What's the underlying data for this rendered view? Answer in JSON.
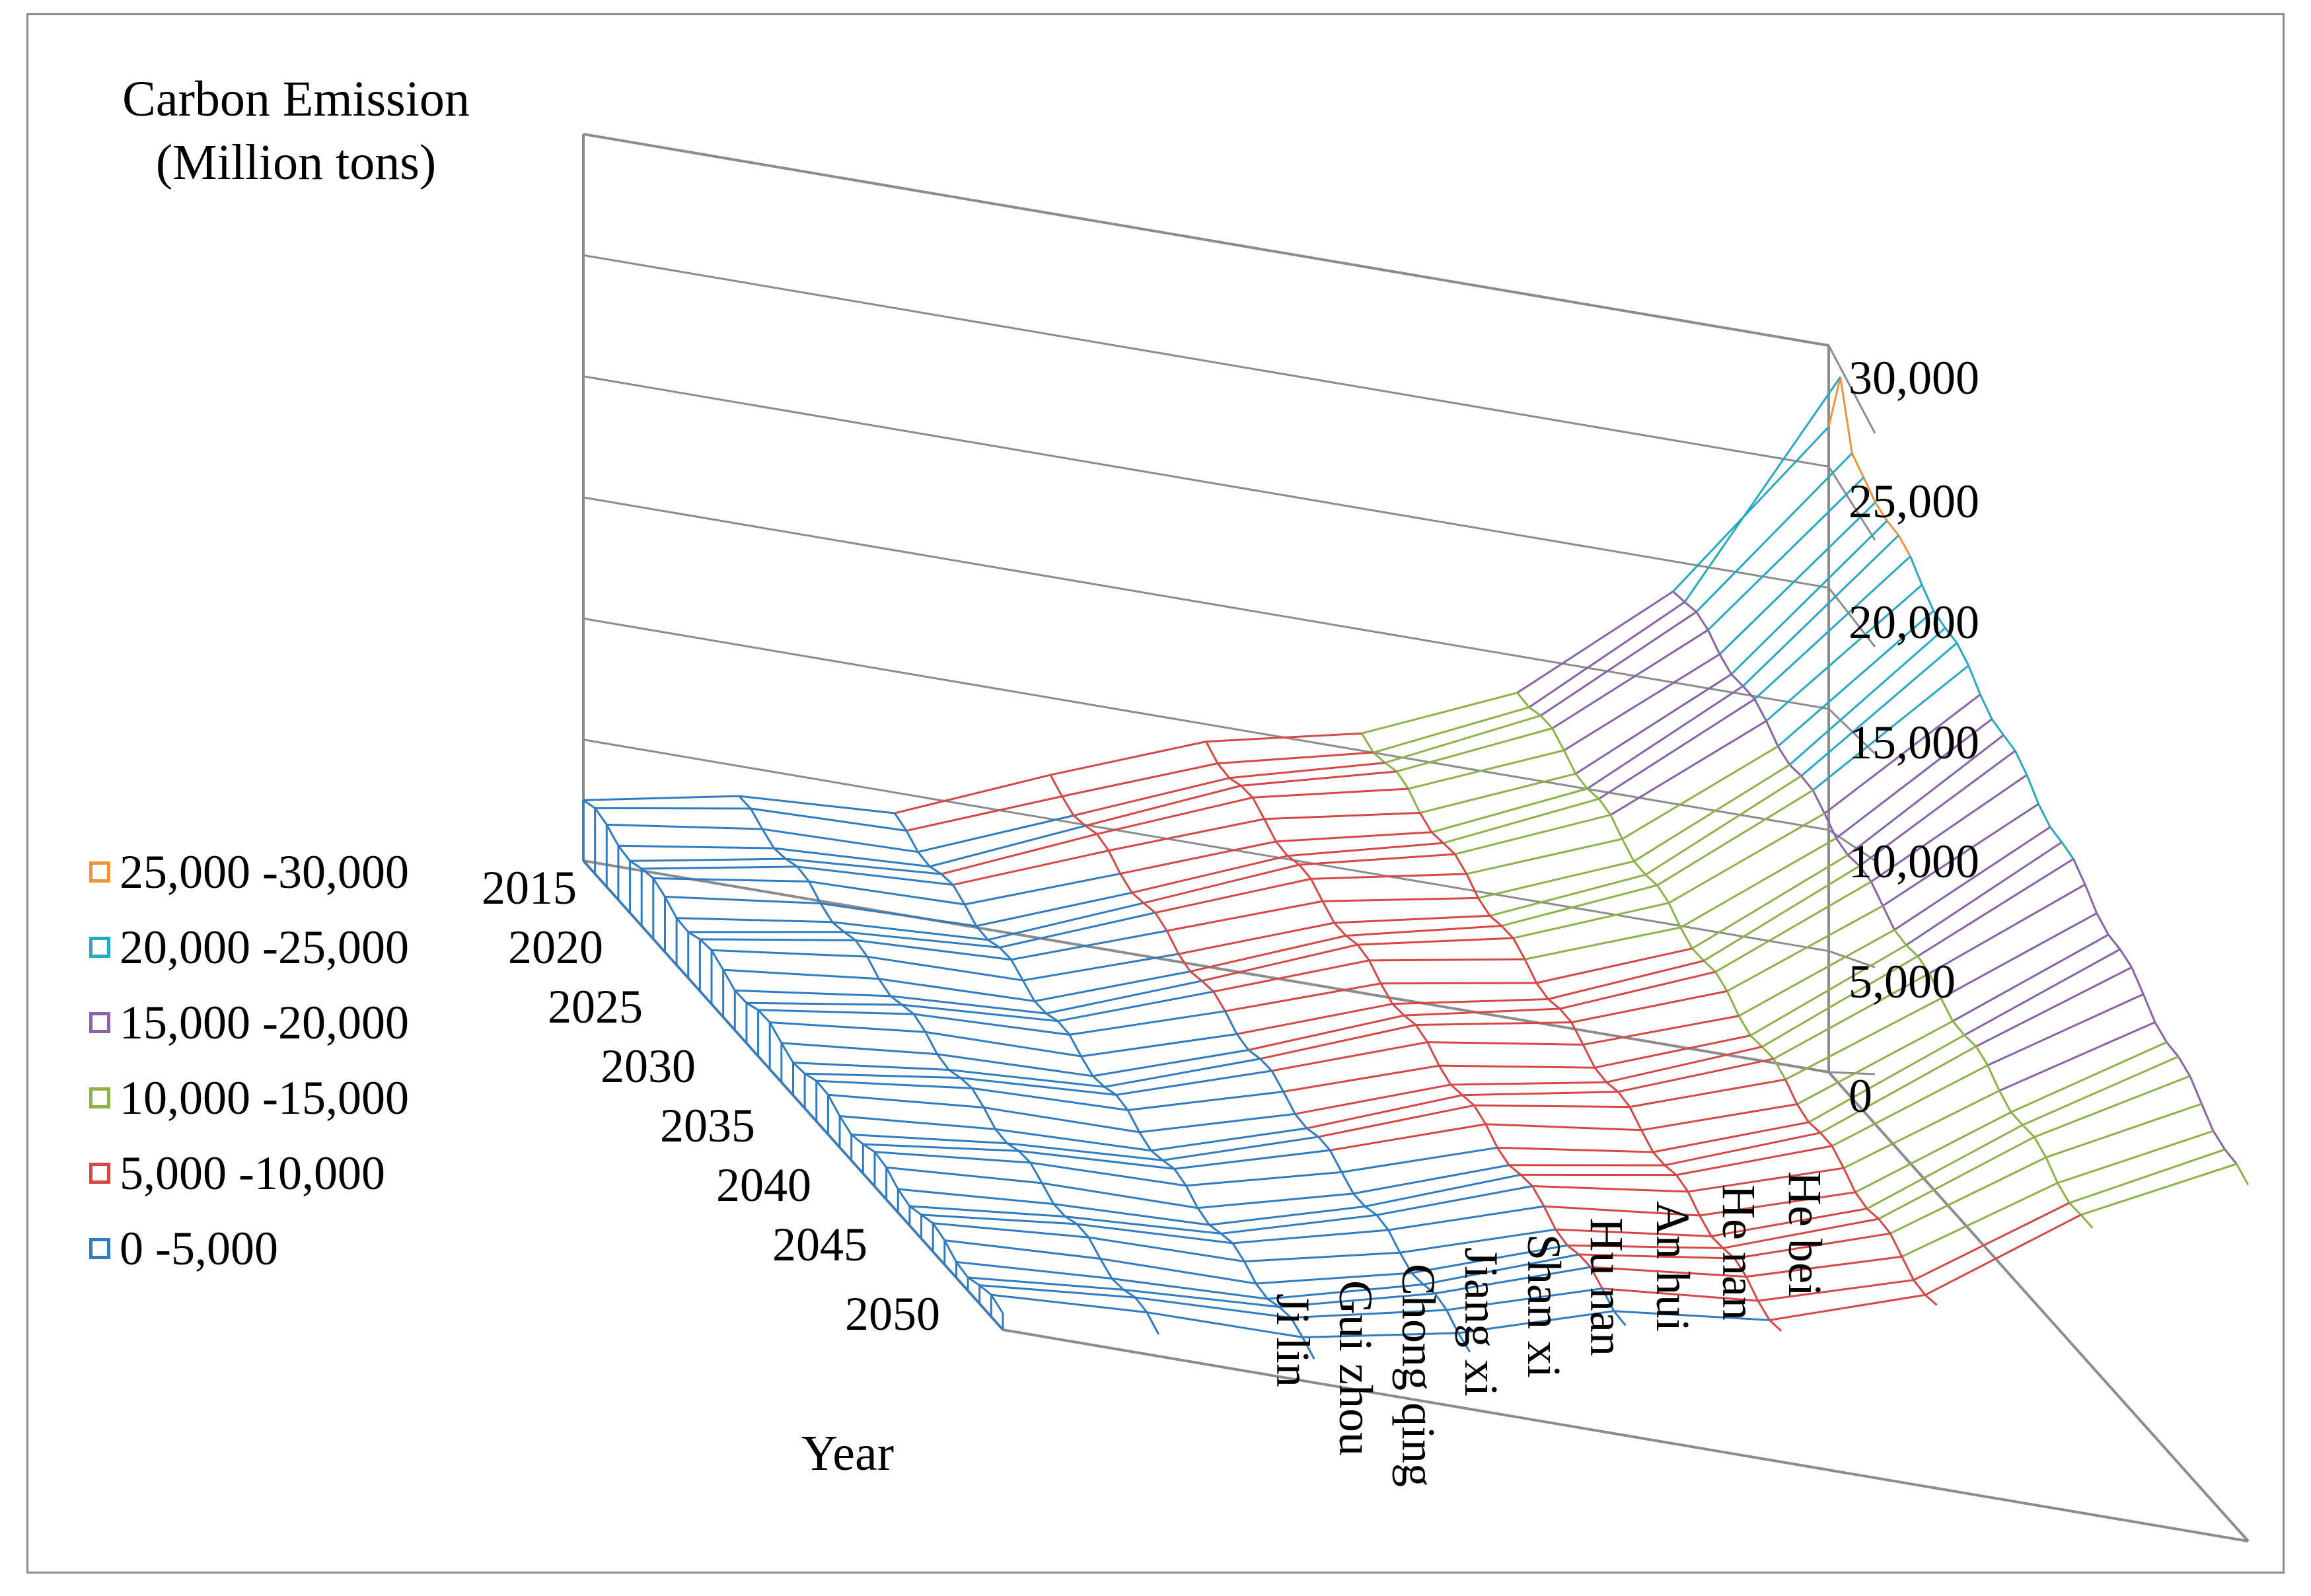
{
  "chart_data": {
    "type": "surface",
    "title": "Carbon Emission (Million tons)",
    "z_axis_title_lines": [
      "Carbon Emission",
      "(Million tons)"
    ],
    "x_axis_title": "Year",
    "x_ticks": [
      "2015",
      "2020",
      "2025",
      "2030",
      "2035",
      "2040",
      "2045",
      "2050"
    ],
    "provinces": [
      "Ji lin",
      "Gui zhou",
      "Chong qing",
      "Jiang xi",
      "Shan xi",
      "Hu nan",
      "An hui",
      "He nan",
      "He bei"
    ],
    "z_ticks": [
      "0",
      "5,000",
      "10,000",
      "15,000",
      "20,000",
      "25,000",
      "30,000"
    ],
    "z_range": [
      0,
      30000
    ],
    "legend": [
      {
        "label": "25,000 -30,000",
        "color": "#f0923b"
      },
      {
        "label": "20,000 -25,000",
        "color": "#27a8c4"
      },
      {
        "label": "15,000 -20,000",
        "color": "#8a62a8"
      },
      {
        "label": "10,000 -15,000",
        "color": "#8cb34a"
      },
      {
        "label": "5,000 -10,000",
        "color": "#d64846"
      },
      {
        "label": "0 -5,000",
        "color": "#2f7cc2"
      }
    ],
    "series_2015": [
      {
        "province": "Ji lin",
        "value": 2500
      },
      {
        "province": "Gui zhou",
        "value": 3600
      },
      {
        "province": "Chong qing",
        "value": 3900
      },
      {
        "province": "Jiang xi",
        "value": 6600
      },
      {
        "province": "Shan xi",
        "value": 9200
      },
      {
        "province": "Hu nan",
        "value": 10800
      },
      {
        "province": "An hui",
        "value": 13700
      },
      {
        "province": "He nan",
        "value": 19000
      },
      {
        "province": "He bei",
        "value": 26800
      }
    ],
    "series_2050": [
      {
        "province": "Ji lin",
        "value": 600
      },
      {
        "province": "Gui zhou",
        "value": 1000
      },
      {
        "province": "Chong qing",
        "value": 1200
      },
      {
        "province": "Jiang xi",
        "value": 2600
      },
      {
        "province": "Shan xi",
        "value": 4700
      },
      {
        "province": "Hu nan",
        "value": 5400
      },
      {
        "province": "An hui",
        "value": 7400
      },
      {
        "province": "He nan",
        "value": 11600
      },
      {
        "province": "He bei",
        "value": 14500
      }
    ]
  }
}
